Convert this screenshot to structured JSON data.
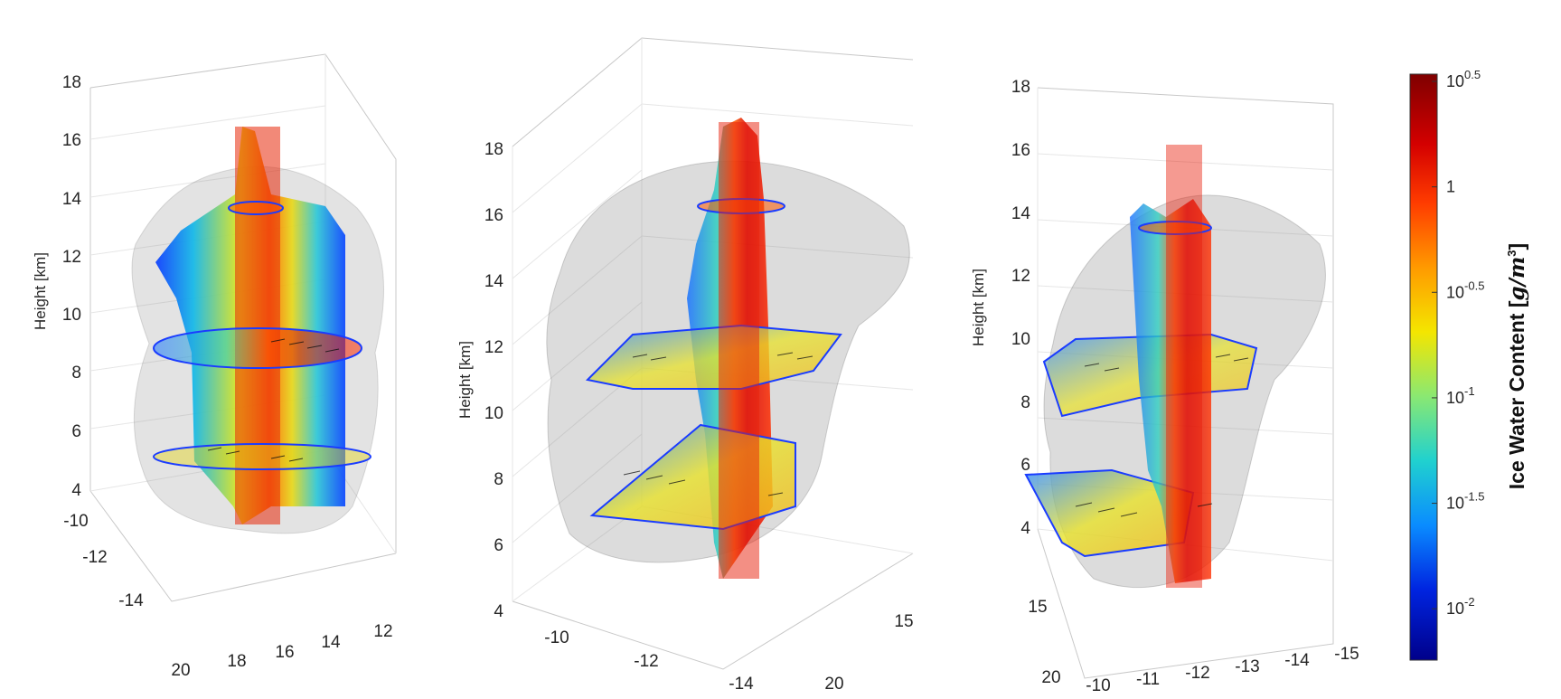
{
  "chart_data": [
    {
      "type": "other",
      "panel": "left",
      "zlabel": "Height [km]",
      "z_ticks": [
        "4",
        "6",
        "8",
        "10",
        "12",
        "14",
        "16",
        "18"
      ],
      "y_ticks": [
        "-10",
        "-12",
        "-14"
      ],
      "x_ticks": [
        "20",
        "18",
        "16",
        "14",
        "12"
      ],
      "zlim": [
        4,
        18
      ]
    },
    {
      "type": "other",
      "panel": "middle",
      "zlabel": "Height [km]",
      "z_ticks": [
        "4",
        "6",
        "8",
        "10",
        "12",
        "14",
        "16",
        "18"
      ],
      "x_ticks": [
        "-10",
        "-12",
        "-14"
      ],
      "y_ticks": [
        "15",
        "20"
      ],
      "zlim": [
        4,
        18
      ]
    },
    {
      "type": "other",
      "panel": "right",
      "zlabel": "Height [km]",
      "z_ticks": [
        "4",
        "6",
        "8",
        "10",
        "12",
        "14",
        "16",
        "18"
      ],
      "y_ticks": [
        "15",
        "20"
      ],
      "x_ticks": [
        "-10",
        "-11",
        "-12",
        "-13",
        "-14",
        "-15"
      ],
      "zlim": [
        4,
        18
      ]
    }
  ],
  "colorbar": {
    "label_text": "Ice Water Content [",
    "label_math": "g/m",
    "label_exp": "3",
    "label_close": "]",
    "ticks": [
      {
        "base": "10",
        "exp": "0.5",
        "frac": 0.0
      },
      {
        "base": "1",
        "exp": "",
        "frac": 0.18
      },
      {
        "base": "10",
        "exp": "-0.5",
        "frac": 0.36
      },
      {
        "base": "10",
        "exp": "-1",
        "frac": 0.54
      },
      {
        "base": "10",
        "exp": "-1.5",
        "frac": 0.72
      },
      {
        "base": "10",
        "exp": "-2",
        "frac": 0.9
      }
    ],
    "colors": [
      "#7f0000",
      "#ff2a00",
      "#ff9900",
      "#ffee00",
      "#8ff07a",
      "#27d3d0",
      "#0b8bff",
      "#0021d9",
      "#00008f"
    ]
  }
}
